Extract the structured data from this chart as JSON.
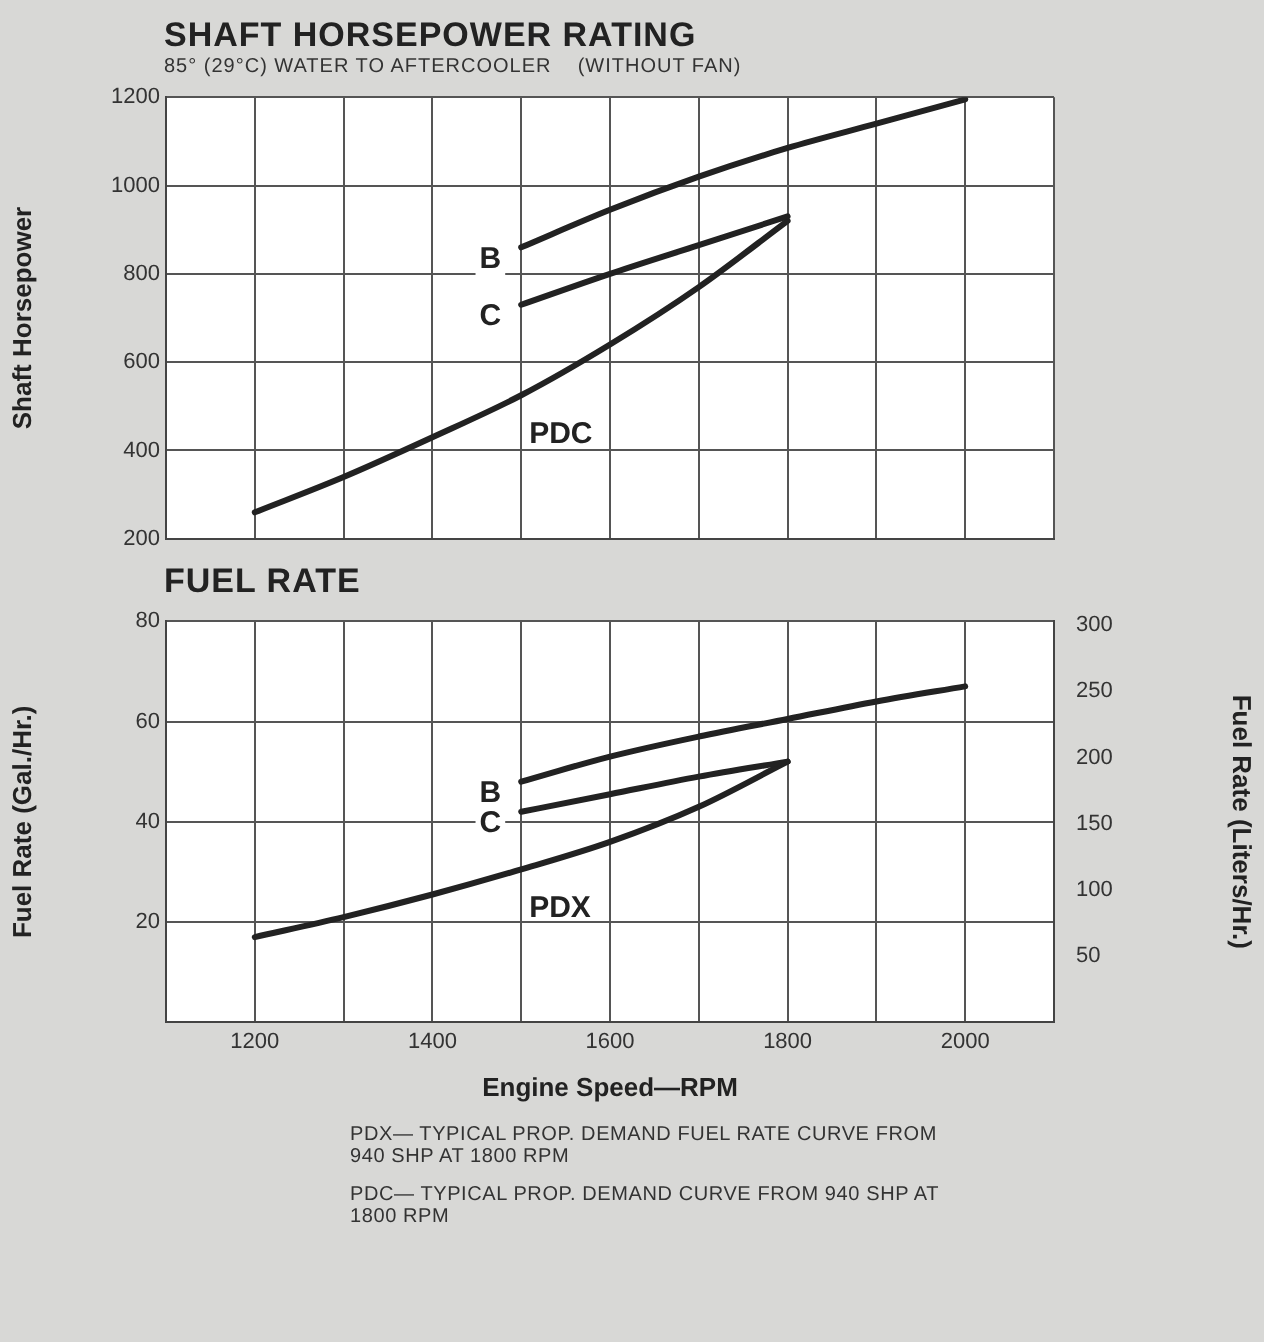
{
  "chart_data": [
    {
      "type": "line",
      "title": "SHAFT HORSEPOWER RATING",
      "subtitle": "85° (29°C) WATER TO AFTERCOOLER    (WITHOUT FAN)",
      "ylabel": "Shaft Horsepower",
      "xlim": [
        1100,
        2100
      ],
      "xticks": [
        {
          "value": 1100,
          "label": null
        },
        1200,
        {
          "value": 1300,
          "label": null
        },
        1400,
        {
          "value": 1500,
          "label": null
        },
        1600,
        {
          "value": 1700,
          "label": null
        },
        1800,
        {
          "value": 1900,
          "label": null
        },
        2000,
        {
          "value": 2100,
          "label": null
        }
      ],
      "ylim": [
        200,
        1200
      ],
      "yticks": [
        200,
        400,
        600,
        800,
        1000,
        1200
      ],
      "grid": true,
      "legend": false,
      "tick_labels": "y",
      "series": [
        {
          "name": "B",
          "color": "#222222",
          "x": [
            1500,
            1600,
            1700,
            1800,
            1900,
            2000
          ],
          "values": [
            860,
            945,
            1020,
            1085,
            1140,
            1195
          ]
        },
        {
          "name": "C",
          "color": "#222222",
          "x": [
            1500,
            1600,
            1700,
            1800
          ],
          "values": [
            730,
            800,
            865,
            930
          ]
        },
        {
          "name": "PDC",
          "color": "#222222",
          "x": [
            1200,
            1300,
            1400,
            1500,
            1600,
            1700,
            1800
          ],
          "values": [
            260,
            340,
            430,
            525,
            640,
            770,
            920
          ]
        }
      ]
    },
    {
      "type": "line",
      "title": "FUEL RATE",
      "xlabel": "Engine Speed—RPM",
      "ylabel": "Fuel Rate (Gal./Hr.)",
      "y2label": "Fuel Rate (Liters/Hr.)",
      "xlim": [
        1100,
        2100
      ],
      "xticks": [
        {
          "value": 1100,
          "label": null
        },
        1200,
        {
          "value": 1300,
          "label": null
        },
        1400,
        {
          "value": 1500,
          "label": null
        },
        1600,
        {
          "value": 1700,
          "label": null
        },
        1800,
        {
          "value": 1900,
          "label": null
        },
        2000,
        {
          "value": 2100,
          "label": null
        }
      ],
      "ylim": [
        0,
        80
      ],
      "yticks": [
        20,
        40,
        60,
        80
      ],
      "y2lim": [
        0,
        303
      ],
      "y2ticks": [
        50,
        100,
        150,
        200,
        250,
        300
      ],
      "grid": true,
      "legend": false,
      "series": [
        {
          "name": "B",
          "color": "#222222",
          "x": [
            1500,
            1600,
            1700,
            1800,
            1900,
            2000
          ],
          "values": [
            48,
            53,
            57,
            60.5,
            64,
            67
          ]
        },
        {
          "name": "C",
          "color": "#222222",
          "x": [
            1500,
            1600,
            1700,
            1800
          ],
          "values": [
            42,
            45.5,
            49,
            52
          ]
        },
        {
          "name": "PDX",
          "color": "#222222",
          "x": [
            1200,
            1300,
            1400,
            1500,
            1600,
            1700,
            1800
          ],
          "values": [
            17,
            21,
            25.5,
            30.5,
            36,
            43,
            52
          ]
        }
      ],
      "annotations": [
        "PDX— TYPICAL PROP. DEMAND FUEL RATE CURVE FROM 940 SHP AT 1800 RPM",
        "PDC— TYPICAL PROP. DEMAND CURVE FROM 940 SHP AT 1800 RPM"
      ]
    }
  ]
}
